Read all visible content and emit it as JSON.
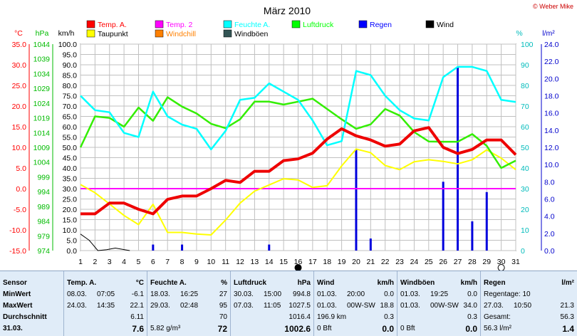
{
  "chart_data": {
    "type": "line",
    "title": "März 2010",
    "copyright": "© Weber Mike",
    "legend": [
      {
        "name": "Temp. A.",
        "color": "#ff0000"
      },
      {
        "name": "Temp. 2",
        "color": "#ff00ff"
      },
      {
        "name": "Feuchte A.",
        "color": "#00ffff"
      },
      {
        "name": "Luftdruck",
        "color": "#00ff00"
      },
      {
        "name": "Regen",
        "color": "#0000ff"
      },
      {
        "name": "Wind",
        "color": "#000000"
      },
      {
        "name": "Taupunkt",
        "color": "#ffff00"
      },
      {
        "name": "Windchill",
        "color": "#ff8000"
      },
      {
        "name": "Windböen",
        "color": "#335555"
      }
    ],
    "axes": {
      "temp": {
        "unit": "°C",
        "color": "#ff0000",
        "ticks": [
          "35.0",
          "30.0",
          "25.0",
          "20.0",
          "15.0",
          "10.0",
          "5.0",
          "0.0",
          "-5.0",
          "-10.0",
          "-15.0"
        ]
      },
      "pressure": {
        "unit": "hPa",
        "color": "#00cc00",
        "ticks": [
          "1044",
          "1039",
          "1034",
          "1029",
          "1024",
          "1019",
          "1014",
          "1009",
          "1004",
          "999",
          "994",
          "989",
          "984",
          "979",
          "974"
        ]
      },
      "wind": {
        "unit": "km/h",
        "color": "#000000",
        "ticks": [
          "100.0",
          "95.0",
          "90.0",
          "85.0",
          "80.0",
          "75.0",
          "70.0",
          "65.0",
          "60.0",
          "55.0",
          "50.0",
          "45.0",
          "40.0",
          "35.0",
          "30.0",
          "25.0",
          "20.0",
          "15.0",
          "10.0",
          "5.0",
          "0.0"
        ]
      },
      "humidity": {
        "unit": "%",
        "color": "#00cccc",
        "ticks": [
          "100",
          "90",
          "80",
          "70",
          "60",
          "50",
          "40",
          "30",
          "20",
          "10",
          "0"
        ]
      },
      "rain": {
        "unit": "l/m²",
        "color": "#0000cc",
        "ticks": [
          "24.0",
          "22.0",
          "20.0",
          "18.0",
          "16.0",
          "14.0",
          "12.0",
          "10.0",
          "8.0",
          "6.0",
          "4.0",
          "2.0",
          "0.0"
        ]
      },
      "x_ticks": [
        "1",
        "2",
        "3",
        "4",
        "5",
        "6",
        "7",
        "8",
        "9",
        "10",
        "11",
        "12",
        "13",
        "14",
        "15",
        "16",
        "17",
        "18",
        "19",
        "20",
        "21",
        "22",
        "23",
        "24",
        "25",
        "26",
        "27",
        "28",
        "29",
        "30",
        "31"
      ],
      "temp_range": [
        -15,
        35
      ],
      "humidity_range": [
        0,
        100
      ],
      "pressure_range": [
        974,
        1044
      ],
      "rain_range": [
        0,
        24
      ],
      "wind_range": [
        0,
        100
      ],
      "grid": true
    },
    "series": [
      {
        "name": "Temp. A.",
        "color": "#ee0000",
        "x": [
          1,
          2,
          3,
          4,
          5,
          6,
          7,
          8,
          9,
          10,
          11,
          12,
          13,
          14,
          15,
          16,
          17,
          18,
          19,
          20,
          21,
          22,
          23,
          24,
          25,
          26,
          27,
          28,
          29,
          30,
          31
        ],
        "y": [
          -6.1,
          -6.1,
          -3.5,
          -3.5,
          -5.0,
          -6.1,
          -2.6,
          -1.8,
          -1.8,
          0.0,
          2.0,
          1.5,
          4.2,
          4.2,
          6.8,
          7.2,
          8.6,
          12.0,
          14.5,
          12.8,
          11.8,
          10.3,
          10.8,
          14.0,
          14.8,
          10.0,
          8.5,
          9.5,
          11.8,
          11.8,
          8.2
        ]
      },
      {
        "name": "Taupunkt",
        "color": "#ffff00",
        "x": [
          1,
          2,
          3,
          4,
          5,
          6,
          7,
          8,
          9,
          10,
          11,
          12,
          13,
          14,
          15,
          16,
          17,
          18,
          19,
          20,
          21,
          22,
          23,
          24,
          25,
          26,
          27,
          28,
          29,
          30,
          31
        ],
        "y": [
          1.0,
          -1.0,
          -3.7,
          -6.5,
          -8.7,
          -3.8,
          -10.6,
          -10.6,
          -11.0,
          -11.2,
          -7.6,
          -3.5,
          -0.6,
          0.9,
          2.4,
          2.1,
          0.3,
          0.7,
          5.5,
          9.6,
          8.7,
          5.6,
          4.6,
          6.5,
          7.0,
          6.6,
          6.0,
          7.0,
          9.4,
          7.4,
          4.6
        ]
      },
      {
        "name": "Temp. 2",
        "color": "#ff00ff",
        "x": [
          1,
          31
        ],
        "y": [
          0.0,
          0.0
        ]
      },
      {
        "name": "Feuchte A.",
        "color": "#00ffff",
        "x": [
          1,
          2,
          3,
          4,
          5,
          6,
          7,
          8,
          9,
          10,
          11,
          12,
          13,
          14,
          15,
          16,
          17,
          18,
          19,
          20,
          21,
          22,
          23,
          24,
          25,
          26,
          27,
          28,
          29,
          30,
          31
        ],
        "y": [
          75,
          68,
          67,
          57,
          55,
          77,
          65,
          61,
          59,
          49,
          58,
          73,
          74,
          81,
          77,
          73,
          63,
          51,
          53,
          87,
          85,
          75,
          68,
          64,
          63,
          84,
          89,
          89,
          87,
          73,
          72
        ]
      },
      {
        "name": "Luftdruck",
        "color": "#33ee00",
        "x": [
          1,
          2,
          3,
          4,
          5,
          6,
          7,
          8,
          9,
          10,
          11,
          12,
          13,
          14,
          15,
          16,
          17,
          18,
          19,
          20,
          21,
          22,
          23,
          24,
          25,
          26,
          27,
          28,
          29,
          30,
          31
        ],
        "y": [
          1009.0,
          1019.5,
          1019.0,
          1016.0,
          1022.5,
          1018.0,
          1026.0,
          1022.8,
          1020.5,
          1017.0,
          1015.5,
          1018.5,
          1024.5,
          1024.5,
          1023.5,
          1024.5,
          1025.5,
          1022.0,
          1018.5,
          1015.3,
          1016.8,
          1022.0,
          1019.8,
          1014.2,
          1011.0,
          1010.9,
          1010.9,
          1013.5,
          1009.5,
          1002.0,
          1004.5
        ]
      },
      {
        "name": "Wind",
        "color": "#000000",
        "x": [
          1,
          1.6,
          2.2,
          2.8,
          3.4,
          4.0,
          4.4
        ],
        "y": [
          8,
          5,
          0,
          0.4,
          1.2,
          0.5,
          0
        ]
      }
    ],
    "rain_bars": [
      {
        "x": 6,
        "value": 0.7
      },
      {
        "x": 8,
        "value": 0.7
      },
      {
        "x": 14,
        "value": 0.7
      },
      {
        "x": 20,
        "value": 11.8
      },
      {
        "x": 21,
        "value": 1.4
      },
      {
        "x": 26,
        "value": 8.0
      },
      {
        "x": 27,
        "value": 21.3
      },
      {
        "x": 28,
        "value": 3.4
      },
      {
        "x": 29,
        "value": 6.8
      }
    ],
    "moon_markers": [
      {
        "x": 16,
        "phase": "new"
      },
      {
        "x": 30,
        "phase": "full"
      }
    ]
  },
  "summary": {
    "sensor": {
      "header": "Sensor",
      "min": "MinWert",
      "max": "MaxWert",
      "avg": "Durchschnitt",
      "date": "31.03."
    },
    "temp": {
      "header": "Temp. A.",
      "unit": "°C",
      "min_date": "08.03.",
      "min_time": "07:05",
      "min_val": "-6.1",
      "max_date": "24.03.",
      "max_time": "14:35",
      "max_val": "22.1",
      "avg": "6.11",
      "current": "7.6"
    },
    "hum": {
      "header": "Feuchte A.",
      "unit": "%",
      "min_date": "18.03.",
      "min_time": "16:25",
      "min_val": "27",
      "max_date": "29.03.",
      "max_time": "02:48",
      "max_val": "95",
      "avg": "70",
      "abs": "5.82 g/m³",
      "current": "72"
    },
    "press": {
      "header": "Luftdruck",
      "unit": "hPa",
      "min_date": "30.03.",
      "min_time": "15:00",
      "min_val": "994.8",
      "max_date": "07.03.",
      "max_time": "11:05",
      "max_val": "1027.5",
      "avg": "1016.4",
      "current": "1002.6"
    },
    "wind": {
      "header": "Wind",
      "unit": "km/h",
      "min_date": "01.03.",
      "min_time": "20:00",
      "min_val": "0.0",
      "max_date": "01.03.",
      "max_time": "00W-SW",
      "max_val": "18.8",
      "avg_dir": "196.9 km",
      "avg": "0.3",
      "bft": "0 Bft",
      "current": "0.0"
    },
    "gust": {
      "header": "Windböen",
      "unit": "km/h",
      "min_date": "01.03.",
      "min_time": "19:25",
      "min_val": "0.0",
      "max_date": "01.03.",
      "max_time": "00W-SW",
      "max_val": "34.0",
      "avg": "0.3",
      "bft": "0 Bft",
      "current": "0.0"
    },
    "rain": {
      "header": "Regen",
      "unit": "l/m²",
      "days": "Regentage: 10",
      "max_date": "27.03.",
      "max_time": "10:50",
      "max_val": "21.3",
      "total_label": "Gesamt:",
      "total": "56.3",
      "current": "56.3 l/m²",
      "current_val": "1.4"
    }
  }
}
